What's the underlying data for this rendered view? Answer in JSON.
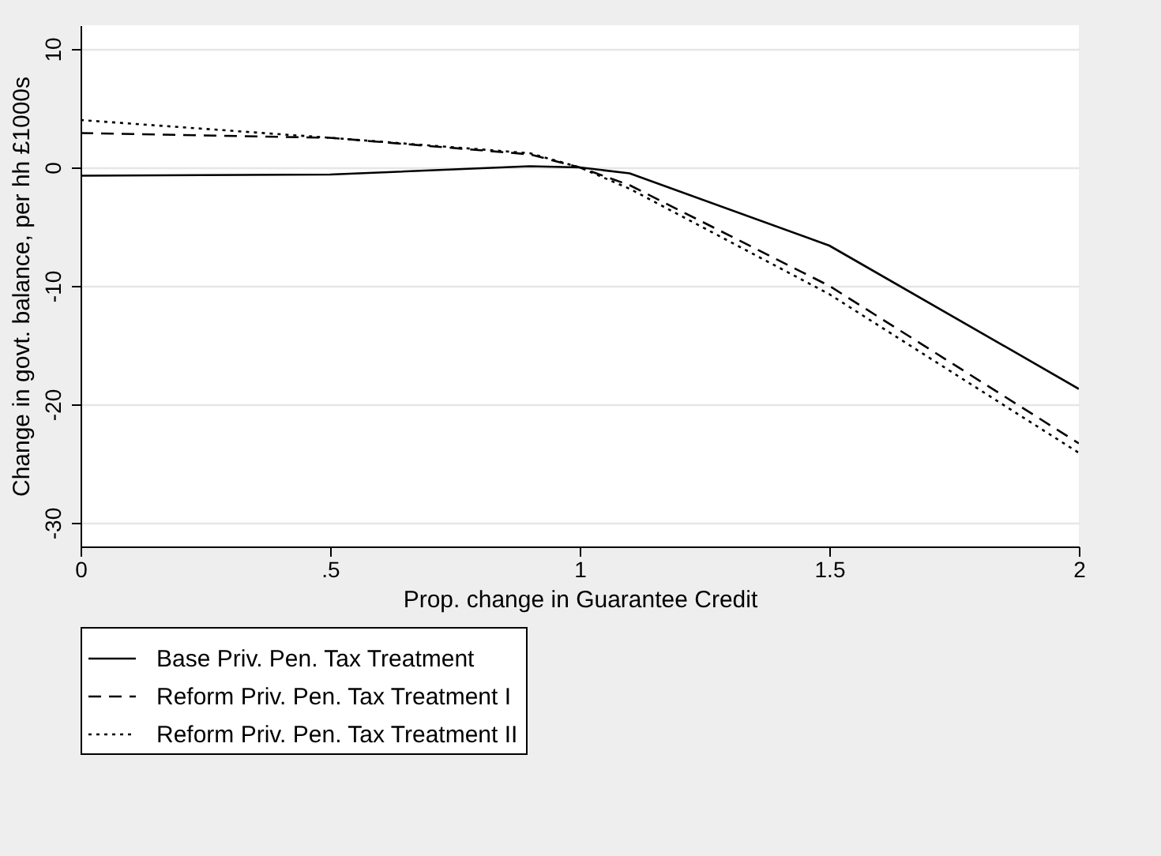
{
  "chart_data": {
    "type": "line",
    "xlabel": "Prop. change in Guarantee Credit",
    "ylabel": "Change in govt. balance, per hh £1000s",
    "x": [
      0,
      0.5,
      0.9,
      1,
      1.1,
      1.5,
      2
    ],
    "xlim": [
      0,
      2
    ],
    "xticks": [
      0,
      {
        "value": 0.5,
        "label": ".5"
      },
      1,
      1.5,
      2
    ],
    "ylim": [
      -32,
      12
    ],
    "yticks": [
      -30,
      -20,
      -10,
      0,
      10
    ],
    "grid": "y",
    "legend": "bottom",
    "series": [
      {
        "name": "Base Priv. Pen. Tax Treatment",
        "color": "#000000",
        "line_style": "solid",
        "values": [
          -0.7,
          -0.6,
          0.1,
          0,
          -0.5,
          -6.6,
          -18.7
        ]
      },
      {
        "name": "Reform Priv. Pen. Tax Treatment I",
        "color": "#000000",
        "line_style": "dashed",
        "values": [
          2.9,
          2.5,
          1.1,
          0,
          -1.5,
          -10,
          -23.3
        ]
      },
      {
        "name": "Reform Priv. Pen. Tax Treatment II",
        "color": "#000000",
        "line_style": "dotted",
        "values": [
          4,
          2.5,
          1.2,
          0,
          -1.8,
          -10.7,
          -24.1
        ]
      }
    ]
  }
}
